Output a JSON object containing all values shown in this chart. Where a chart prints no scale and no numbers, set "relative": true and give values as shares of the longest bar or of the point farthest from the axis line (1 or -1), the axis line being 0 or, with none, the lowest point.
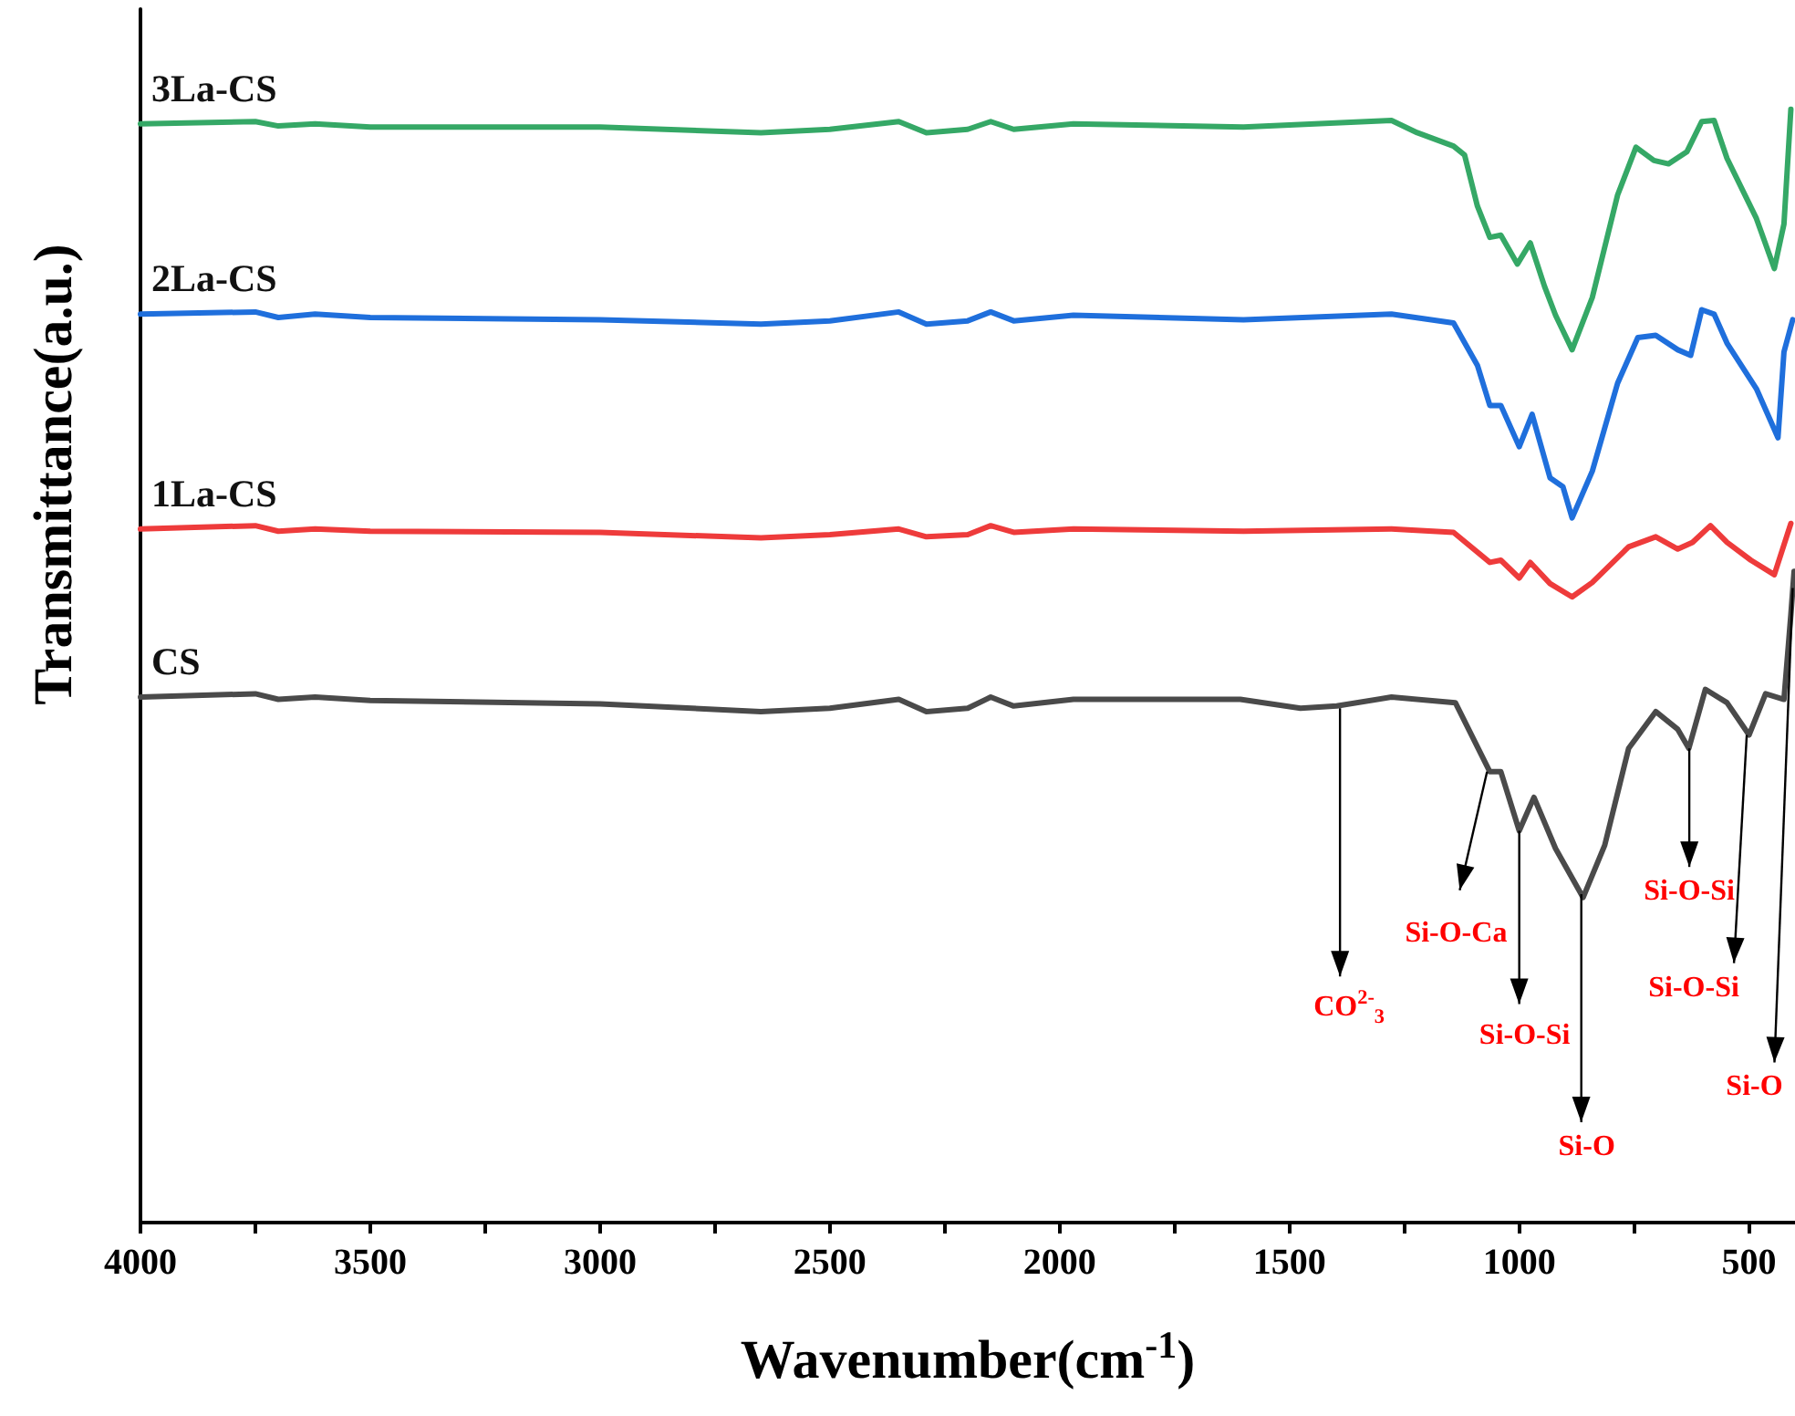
{
  "chart_data": {
    "type": "line",
    "relative": true,
    "xlabel": "Wavenumber(cm$^{-1}$)",
    "ylabel": "Transmittance(a.u.)",
    "xlim": [
      4000,
      400
    ],
    "xticks": [
      4000,
      {
        "value": 3750,
        "label": null
      },
      3500,
      {
        "value": 3250,
        "label": null
      },
      3000,
      {
        "value": 2750,
        "label": null
      },
      2500,
      {
        "value": 2250,
        "label": null
      },
      2000,
      {
        "value": 1750,
        "label": null
      },
      1500,
      {
        "value": 1250,
        "label": null
      },
      1000,
      {
        "value": 750,
        "label": null
      },
      500
    ],
    "grid": false,
    "legend": false,
    "marker": "none",
    "line_style": "solid",
    "series": [
      {
        "name": "CS",
        "color": "#4a4a4a",
        "x": [
          4000,
          3750,
          3700,
          3620,
          3500,
          3000,
          2650,
          2500,
          2350,
          2290,
          2200,
          2150,
          2100,
          1970,
          1607,
          1476,
          1397,
          1278,
          1139,
          1064,
          1040,
          1000,
          968,
          921,
          861,
          814,
          762,
          703,
          655,
          631,
          595,
          548,
          500,
          464,
          424,
          409,
          402
        ],
        "values": [
          0.472,
          0.475,
          0.47,
          0.472,
          0.469,
          0.466,
          0.459,
          0.462,
          0.47,
          0.459,
          0.462,
          0.472,
          0.464,
          0.47,
          0.47,
          0.462,
          0.464,
          0.472,
          0.467,
          0.405,
          0.405,
          0.352,
          0.382,
          0.336,
          0.292,
          0.339,
          0.426,
          0.459,
          0.443,
          0.426,
          0.479,
          0.467,
          0.438,
          0.475,
          0.47,
          0.546,
          0.585
        ]
      },
      {
        "name": "1La-CS",
        "color": "#ee3b3b",
        "x": [
          4000,
          3750,
          3700,
          3620,
          3500,
          3000,
          2650,
          2500,
          2350,
          2290,
          2200,
          2150,
          2100,
          1970,
          1600,
          1278,
          1143,
          1064,
          1040,
          1000,
          976,
          933,
          885,
          841,
          762,
          703,
          655,
          623,
          584,
          548,
          496,
          445,
          409
        ],
        "values": [
          0.623,
          0.626,
          0.621,
          0.623,
          0.621,
          0.62,
          0.615,
          0.618,
          0.623,
          0.616,
          0.618,
          0.626,
          0.62,
          0.623,
          0.621,
          0.623,
          0.62,
          0.593,
          0.595,
          0.579,
          0.593,
          0.574,
          0.562,
          0.575,
          0.607,
          0.616,
          0.605,
          0.611,
          0.626,
          0.611,
          0.595,
          0.582,
          0.628
        ]
      },
      {
        "name": "2La-CS",
        "color": "#1f6fdc",
        "x": [
          4000,
          3750,
          3700,
          3620,
          3500,
          3000,
          2650,
          2500,
          2350,
          2290,
          2200,
          2150,
          2100,
          1970,
          1600,
          1278,
          1143,
          1091,
          1064,
          1040,
          1000,
          972,
          933,
          905,
          885,
          841,
          786,
          742,
          703,
          655,
          627,
          603,
          576,
          548,
          484,
          437,
          424,
          405
        ],
        "values": [
          0.816,
          0.818,
          0.813,
          0.816,
          0.813,
          0.811,
          0.807,
          0.81,
          0.818,
          0.807,
          0.81,
          0.818,
          0.81,
          0.815,
          0.811,
          0.816,
          0.808,
          0.77,
          0.734,
          0.734,
          0.697,
          0.726,
          0.669,
          0.661,
          0.633,
          0.675,
          0.754,
          0.795,
          0.797,
          0.784,
          0.779,
          0.82,
          0.816,
          0.79,
          0.749,
          0.705,
          0.782,
          0.811
        ]
      },
      {
        "name": "3La-CS",
        "color": "#35a866",
        "x": [
          4000,
          3750,
          3700,
          3620,
          3500,
          3000,
          2650,
          2500,
          2350,
          2290,
          2200,
          2150,
          2100,
          1970,
          1600,
          1278,
          1222,
          1143,
          1119,
          1091,
          1064,
          1040,
          1004,
          976,
          945,
          921,
          885,
          841,
          786,
          746,
          707,
          675,
          635,
          603,
          576,
          548,
          484,
          445,
          424,
          409
        ],
        "values": [
          0.987,
          0.989,
          0.985,
          0.987,
          0.984,
          0.984,
          0.979,
          0.982,
          0.989,
          0.979,
          0.982,
          0.989,
          0.982,
          0.987,
          0.984,
          0.99,
          0.979,
          0.967,
          0.959,
          0.913,
          0.885,
          0.887,
          0.861,
          0.88,
          0.841,
          0.815,
          0.784,
          0.831,
          0.923,
          0.966,
          0.954,
          0.951,
          0.962,
          0.989,
          0.99,
          0.956,
          0.902,
          0.857,
          0.897,
          1.0
        ]
      }
    ],
    "annotations": [
      {
        "text": "CO$^{2-}$$_{3}$",
        "x": 1390,
        "y": 0.462
      },
      {
        "text": "Si-O-Ca",
        "x": 1070,
        "y": 0.405
      },
      {
        "text": "Si-O-Si",
        "x": 1000,
        "y": 0.352
      },
      {
        "text": "Si-O",
        "x": 865,
        "y": 0.295
      },
      {
        "text": "Si-O-Si",
        "x": 630,
        "y": 0.426
      },
      {
        "text": "Si-O-Si",
        "x": 505,
        "y": 0.438
      },
      {
        "text": "Si-O",
        "x": 405,
        "y": 0.57
      }
    ]
  }
}
